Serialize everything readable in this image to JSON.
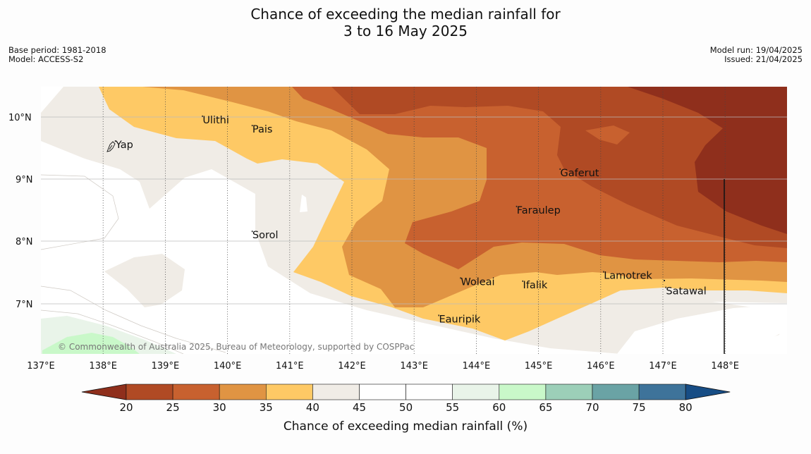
{
  "title": {
    "line1": "Chance of exceeding the median rainfall for",
    "line2": "3 to 16 May 2025"
  },
  "meta_left": {
    "base_period": "Base period: 1981-2018",
    "model": "Model: ACCESS-S2"
  },
  "meta_right": {
    "model_run": "Model run: 19/04/2025",
    "issued": "Issued: 21/04/2025"
  },
  "map": {
    "lon_ticks": [
      "137°E",
      "138°E",
      "139°E",
      "140°E",
      "141°E",
      "142°E",
      "143°E",
      "144°E",
      "145°E",
      "146°E",
      "147°E",
      "148°E"
    ],
    "lat_ticks": [
      "10°N",
      "9°N",
      "8°N",
      "7°N"
    ],
    "places": [
      {
        "name": "Yap",
        "lon": 138.2,
        "lat": 9.5
      },
      {
        "name": "Ulithi",
        "lon": 139.6,
        "lat": 9.9
      },
      {
        "name": "Pais",
        "lon": 140.4,
        "lat": 9.75
      },
      {
        "name": "Gaferut",
        "lon": 145.35,
        "lat": 9.05
      },
      {
        "name": "Faraulep",
        "lon": 144.65,
        "lat": 8.45
      },
      {
        "name": "Sorol",
        "lon": 140.4,
        "lat": 8.05
      },
      {
        "name": "Lamotrek",
        "lon": 146.05,
        "lat": 7.4
      },
      {
        "name": "Woleai",
        "lon": 143.75,
        "lat": 7.3
      },
      {
        "name": "Ifalik",
        "lon": 144.75,
        "lat": 7.25
      },
      {
        "name": "Satawal",
        "lon": 147.05,
        "lat": 7.15
      },
      {
        "name": "Eauripik",
        "lon": 143.4,
        "lat": 6.7
      }
    ],
    "copyright": "© Commonwealth of Australia 2025, Bureau of Meteorology, supported by COSPPac"
  },
  "colorbar": {
    "ticks": [
      "20",
      "25",
      "30",
      "35",
      "40",
      "45",
      "50",
      "55",
      "60",
      "65",
      "70",
      "75",
      "80"
    ],
    "colors": [
      "#8f2f1c",
      "#b04a24",
      "#c8612f",
      "#e09443",
      "#fec965",
      "#f0ece6",
      "#ffffff",
      "#ffffff",
      "#e9f4e9",
      "#c9f8c9",
      "#9ccfb8",
      "#6aa3a5",
      "#3e739a",
      "#174d85"
    ],
    "title": "Chance of exceeding median rainfall (%)"
  }
}
